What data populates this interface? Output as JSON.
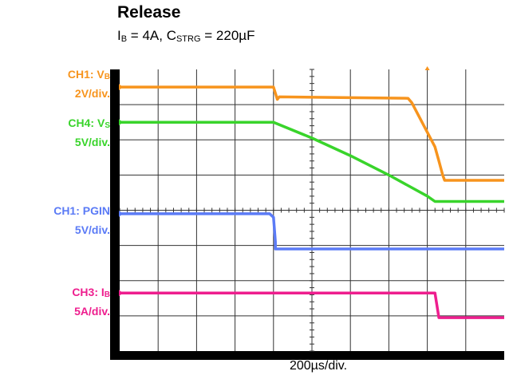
{
  "chart_data": {
    "type": "line",
    "title": "Release",
    "subtitle": {
      "prefix": "I",
      "sub1": "B",
      "mid": " = 4A, C",
      "sub2": "STRG",
      "suffix": " = 220µF"
    },
    "x_div_label": "200µs/div.",
    "grid": {
      "x_divisions": 10,
      "y_divisions": 8,
      "grid_on": true
    },
    "x_range_div": [
      0,
      10
    ],
    "y_range_div": [
      0,
      8
    ],
    "channels": [
      {
        "name_main": "CH1: V",
        "name_sub": "B",
        "scale": "2V/div.",
        "color": "#F7941D",
        "trace": [
          [
            0,
            7.5
          ],
          [
            3.0,
            7.5
          ],
          [
            4.0,
            7.5
          ],
          [
            4.1,
            7.15
          ],
          [
            4.15,
            7.22
          ],
          [
            7.5,
            7.18
          ],
          [
            7.6,
            7.05
          ],
          [
            8.2,
            5.8
          ],
          [
            8.3,
            5.4
          ],
          [
            8.4,
            5.0
          ],
          [
            8.45,
            4.85
          ],
          [
            10,
            4.85
          ]
        ]
      },
      {
        "name_main": "CH4: V",
        "name_sub": "S",
        "scale": "5V/div.",
        "color": "#39D42B",
        "trace": [
          [
            0,
            6.5
          ],
          [
            4.0,
            6.5
          ],
          [
            5.0,
            6.05
          ],
          [
            6.0,
            5.55
          ],
          [
            7.0,
            5.0
          ],
          [
            8.0,
            4.4
          ],
          [
            8.2,
            4.25
          ],
          [
            10,
            4.25
          ]
        ]
      },
      {
        "name_main": "CH1: PGIN",
        "name_sub": "",
        "scale": "5V/div.",
        "color": "#5B7BF6",
        "trace": [
          [
            0,
            3.9
          ],
          [
            3.9,
            3.9
          ],
          [
            4.0,
            3.8
          ],
          [
            4.05,
            3.1
          ],
          [
            4.05,
            2.9
          ],
          [
            10,
            2.9
          ]
        ]
      },
      {
        "name_main": "CH3: I",
        "name_sub": "B",
        "scale": "5A/div.",
        "color": "#EE1E8E",
        "trace": [
          [
            0,
            1.65
          ],
          [
            8.2,
            1.65
          ],
          [
            8.3,
            0.95
          ],
          [
            10,
            0.95
          ]
        ]
      }
    ]
  }
}
